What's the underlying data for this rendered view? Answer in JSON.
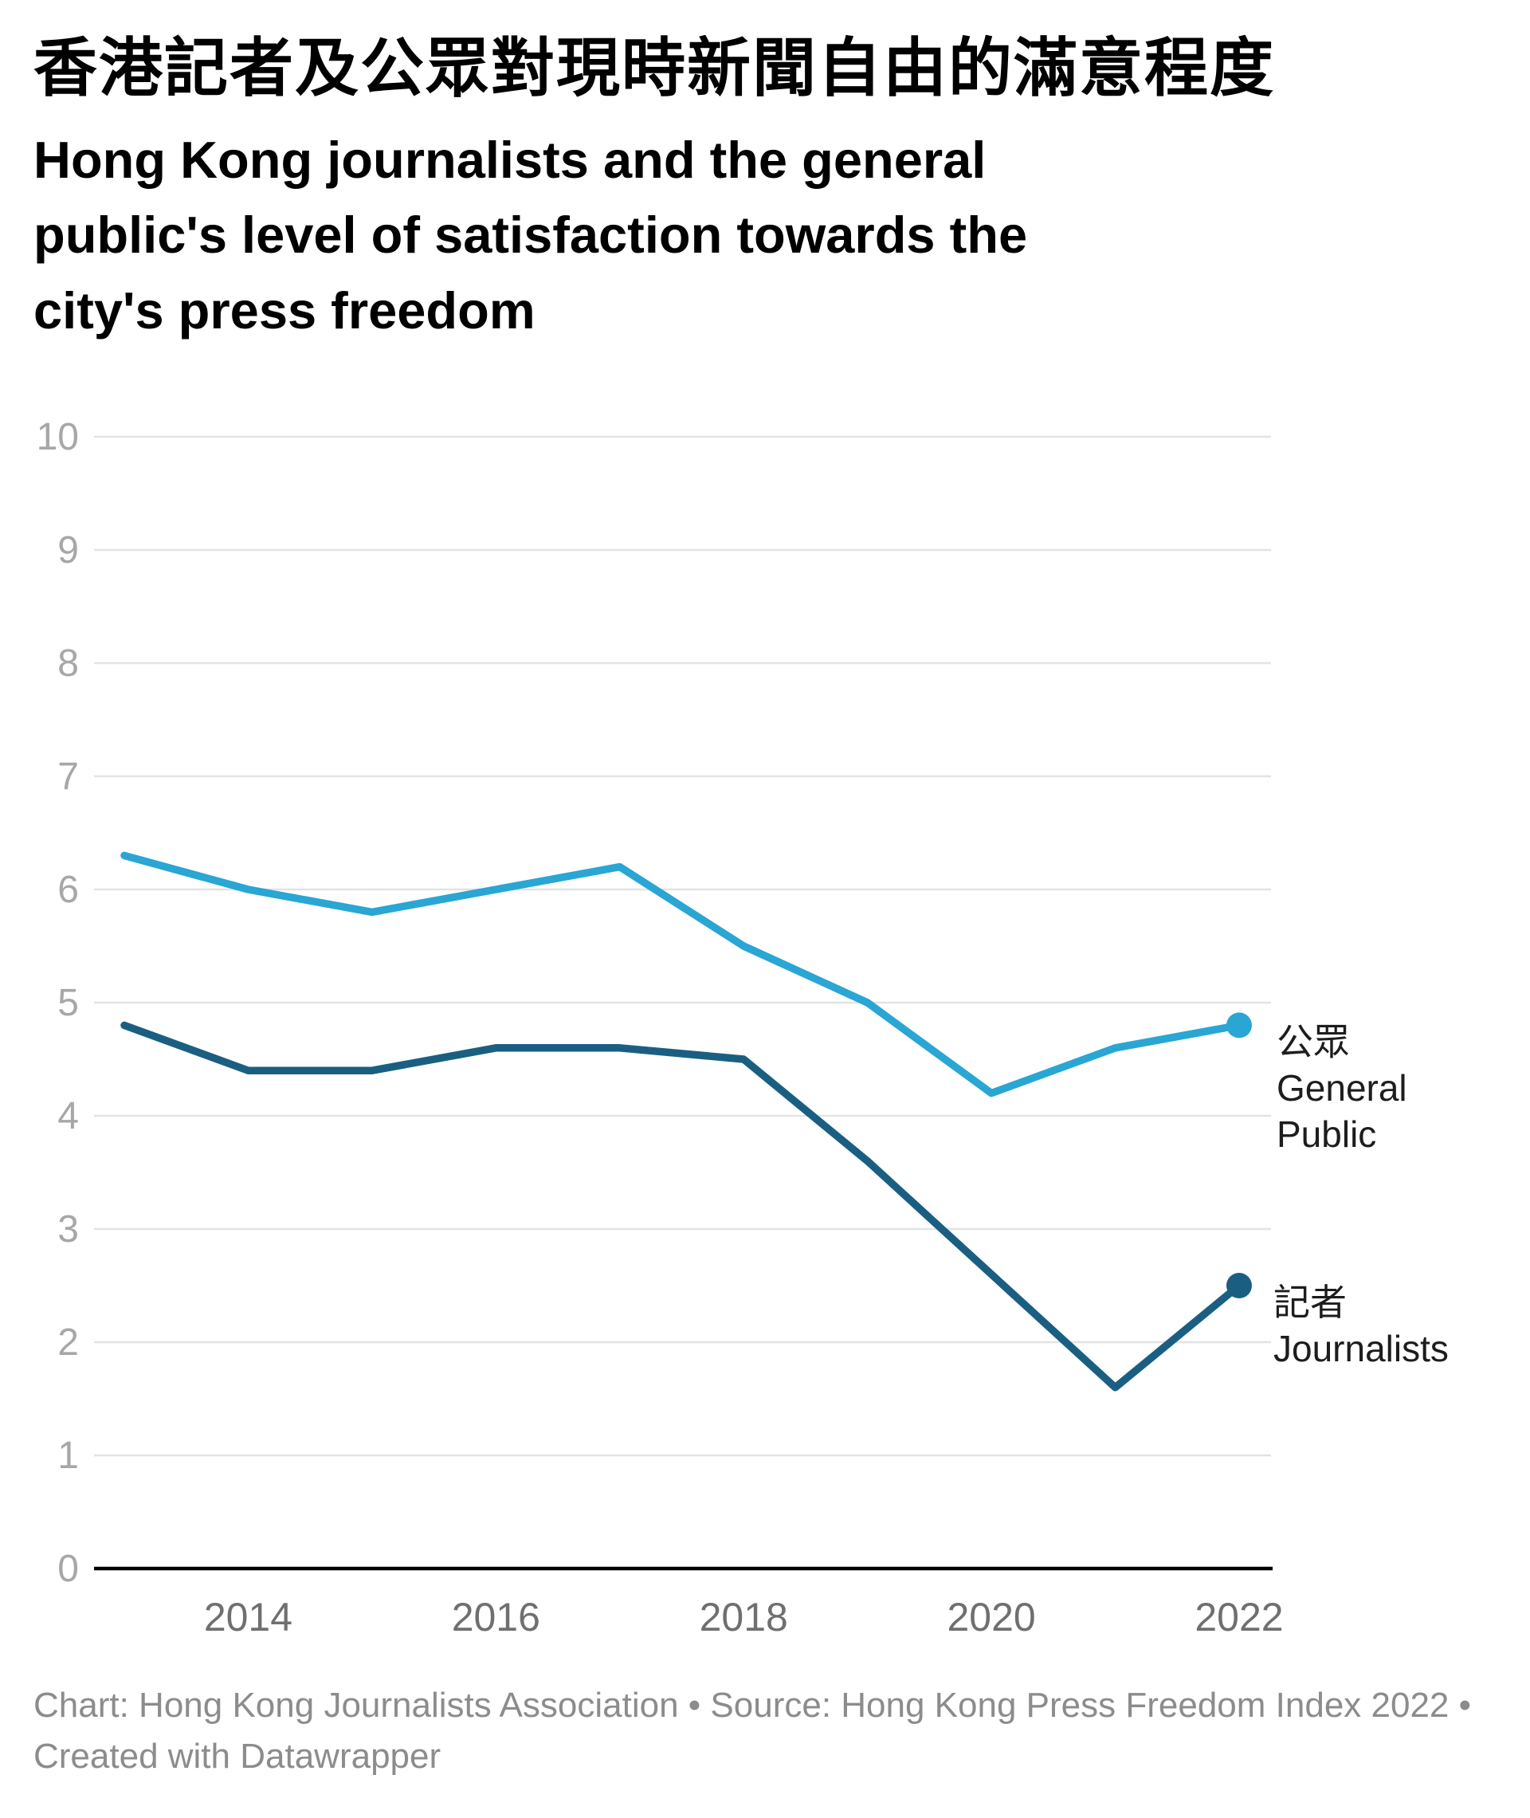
{
  "header": {
    "title_zh": "香港記者及公眾對現時新聞自由的滿意程度",
    "title_en_lines": [
      "Hong Kong journalists and the general",
      "public's level of satisfaction towards the",
      "city's press freedom"
    ]
  },
  "chart_data": {
    "type": "line",
    "x": [
      2013,
      2014,
      2015,
      2016,
      2017,
      2018,
      2019,
      2020,
      2021,
      2022
    ],
    "series": [
      {
        "name_zh": "公眾",
        "name_en": "General Public",
        "color": "#29a6d4",
        "values": [
          6.3,
          6.0,
          5.8,
          6.0,
          6.2,
          5.5,
          5.0,
          4.2,
          4.6,
          4.8
        ]
      },
      {
        "name_zh": "記者",
        "name_en": "Journalists",
        "color": "#1a5f82",
        "values": [
          4.8,
          4.4,
          4.4,
          4.6,
          4.6,
          4.5,
          3.6,
          2.6,
          1.6,
          2.5
        ]
      }
    ],
    "ylim": [
      0,
      10
    ],
    "yticks": [
      0,
      1,
      2,
      3,
      4,
      5,
      6,
      7,
      8,
      9,
      10
    ],
    "xticks": [
      2014,
      2016,
      2018,
      2020,
      2022
    ],
    "grid": "horizontal-only",
    "legend_position": "right of line end points",
    "end_point_markers": true,
    "axis_colors": {
      "gridline": "#e3e3e3",
      "baseline": "#000000",
      "y_tick_label": "#a7a7a7",
      "x_tick_label": "#6f6f6f"
    }
  },
  "footer": {
    "lines": [
      "Chart: Hong Kong Journalists Association • Source: Hong Kong Press Freedom Index 2022 •",
      "Created with Datawrapper"
    ]
  }
}
